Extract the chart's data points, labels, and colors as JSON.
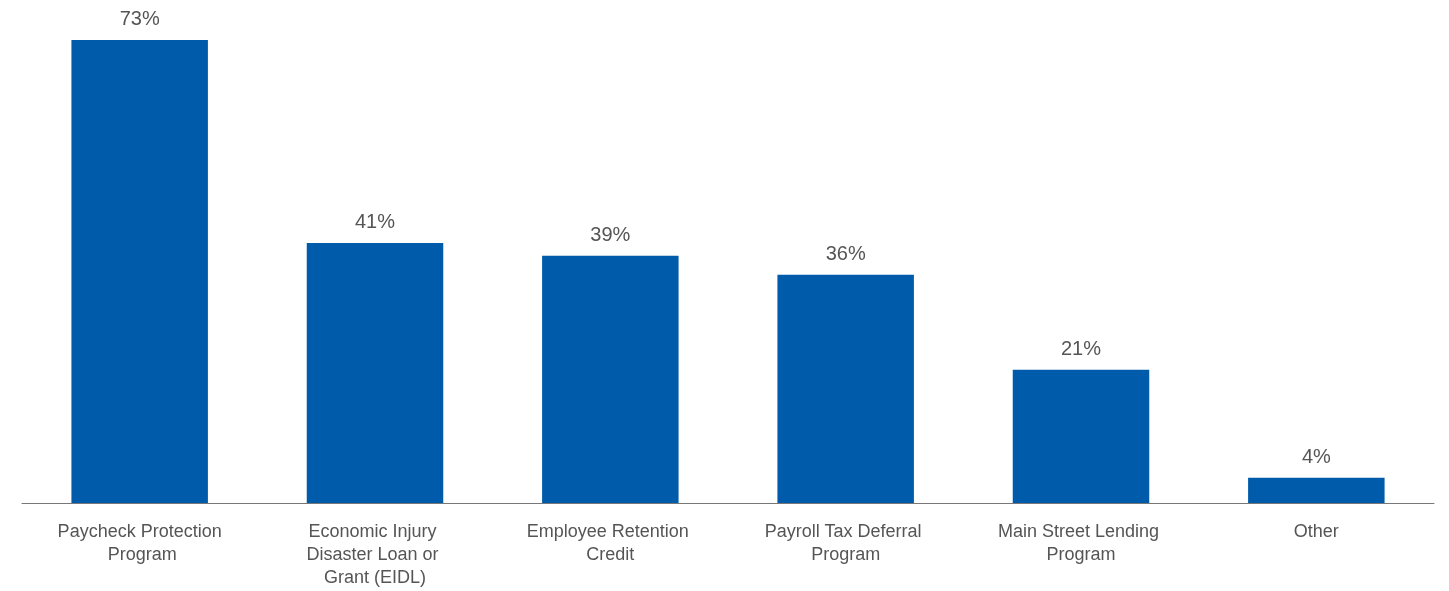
{
  "chart_data": {
    "type": "bar",
    "categories": [
      "Paycheck Protection Program",
      "Economic Injury Disaster Loan or Grant (EIDL)",
      "Employee Retention Credit",
      "Payroll Tax Deferral Program",
      "Main Street Lending Program",
      "Other"
    ],
    "values": [
      73,
      41,
      39,
      36,
      21,
      4
    ],
    "value_labels": [
      "73%",
      "41%",
      "39%",
      "36%",
      "21%",
      "4%"
    ],
    "color": "#005cab"
  }
}
